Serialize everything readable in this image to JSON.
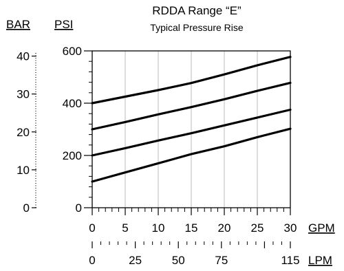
{
  "chart_data": {
    "type": "line",
    "title": "RDDA Range “E”",
    "subtitle": "Typical Pressure Rise",
    "left_unit_label": "BAR",
    "right_unit_label": "PSI",
    "x_unit_label": "GPM",
    "x2_unit_label": "LPM",
    "x": [
      0,
      5,
      10,
      15,
      20,
      25,
      30
    ],
    "xlim": [
      0,
      30
    ],
    "ylim": [
      0,
      600
    ],
    "y2lim": [
      0,
      41.37
    ],
    "x_ticks": [
      "0",
      "5",
      "10",
      "15",
      "20",
      "25",
      "30"
    ],
    "x2_ticks": [
      {
        "value": 0,
        "label": "0"
      },
      {
        "value": 25,
        "label": "25"
      },
      {
        "value": 50,
        "label": "50"
      },
      {
        "value": 75,
        "label": "75"
      },
      {
        "value": 115,
        "label": "115"
      }
    ],
    "y_ticks": [
      "200",
      "400",
      "600"
    ],
    "y2_ticks": [
      {
        "value": 0,
        "label": "0"
      },
      {
        "value": 10,
        "label": "10"
      },
      {
        "value": 20,
        "label": "20"
      },
      {
        "value": 30,
        "label": "30"
      },
      {
        "value": 40,
        "label": "40"
      }
    ],
    "grid": {
      "vertical": true,
      "horizontal": false
    },
    "line_color": "#000000",
    "grid_color": "#bbbbbb",
    "series": [
      {
        "values": [
          400,
          425,
          450,
          477,
          510,
          545,
          577
        ]
      },
      {
        "values": [
          300,
          328,
          357,
          385,
          415,
          447,
          478
        ]
      },
      {
        "values": [
          200,
          228,
          257,
          285,
          315,
          345,
          375
        ]
      },
      {
        "values": [
          100,
          135,
          170,
          205,
          235,
          270,
          302
        ]
      }
    ]
  }
}
